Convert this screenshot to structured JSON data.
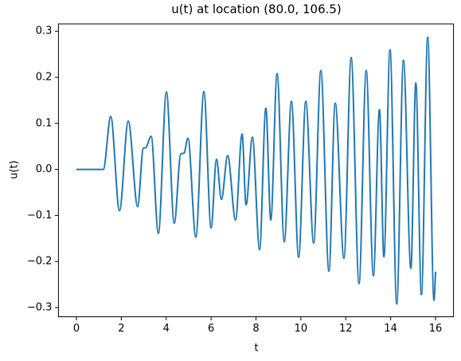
{
  "chart_data": {
    "type": "line",
    "title": "u(t) at location (80.0, 106.5)",
    "x_label": "t",
    "y_label": "u(t)",
    "x": [
      0,
      1.0,
      1.2,
      1.53,
      1.92,
      2.31,
      2.73,
      2.98,
      3.09,
      3.33,
      3.65,
      4.01,
      4.36,
      4.65,
      4.79,
      4.97,
      5.32,
      5.68,
      6.0,
      6.24,
      6.46,
      6.74,
      7.09,
      7.38,
      7.56,
      7.84,
      8.16,
      8.44,
      8.66,
      8.94,
      9.26,
      9.58,
      9.9,
      10.22,
      10.57,
      10.89,
      11.25,
      11.53,
      11.92,
      12.24,
      12.59,
      12.91,
      13.23,
      13.5,
      13.7,
      13.97,
      14.27,
      14.57,
      14.9,
      15.12,
      15.37,
      15.65,
      15.93,
      16.0
    ],
    "series": [
      {
        "name": "u(t)",
        "color": "#1f77b4",
        "values": [
          0,
          0,
          0,
          0.115,
          -0.09,
          0.105,
          -0.081,
          0.046,
          0.047,
          0.072,
          -0.139,
          0.168,
          -0.117,
          0.034,
          0.035,
          0.068,
          -0.147,
          0.169,
          -0.127,
          0.022,
          -0.065,
          0.03,
          -0.11,
          0.077,
          -0.077,
          0.07,
          -0.174,
          0.133,
          -0.11,
          0.208,
          -0.157,
          0.148,
          -0.191,
          0.148,
          -0.16,
          0.215,
          -0.221,
          0.144,
          -0.193,
          0.243,
          -0.248,
          0.215,
          -0.231,
          0.13,
          -0.19,
          0.26,
          -0.292,
          0.237,
          -0.215,
          0.188,
          -0.272,
          0.287,
          -0.284,
          -0.222
        ]
      }
    ],
    "xlim": [
      -0.8,
      16.8
    ],
    "xticks": [
      0,
      2,
      4,
      6,
      8,
      10,
      12,
      14,
      16
    ],
    "ylim": [
      -0.32,
      0.316
    ],
    "yticks": [
      {
        "value": -0.3,
        "label": "−0.3"
      },
      {
        "value": -0.2,
        "label": "−0.2"
      },
      {
        "value": -0.1,
        "label": "−0.1"
      },
      {
        "value": 0,
        "label": "0.0"
      },
      {
        "value": 0.1,
        "label": "0.1"
      },
      {
        "value": 0.2,
        "label": "0.2"
      },
      {
        "value": 0.3,
        "label": "0.3"
      }
    ],
    "grid": false
  }
}
